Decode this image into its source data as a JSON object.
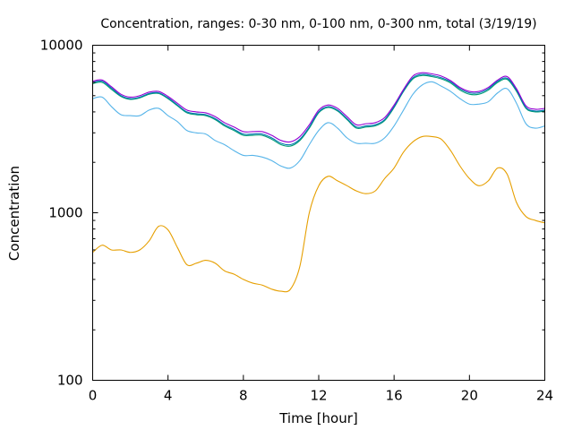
{
  "chart_data": {
    "type": "line",
    "title": "Concentration, ranges: 0-30 nm, 0-100 nm, 0-300 nm, total (3/19/19)",
    "xlabel": "Time [hour]",
    "ylabel": "Concentration",
    "xlim": [
      0,
      24
    ],
    "ylim": [
      100,
      10000
    ],
    "yscale": "log",
    "grid": false,
    "legend": "none",
    "xticks": [
      0,
      4,
      8,
      12,
      16,
      20,
      24
    ],
    "xtick_labels": [
      "0",
      "4",
      "8",
      "12",
      "16",
      "20",
      "24"
    ],
    "yticks": [
      100,
      1000,
      10000
    ],
    "ytick_labels": [
      "100",
      "1000",
      "10000"
    ],
    "x": [
      0,
      0.5,
      1,
      1.5,
      2,
      2.5,
      3,
      3.5,
      4,
      4.5,
      5,
      5.5,
      6,
      6.5,
      7,
      7.5,
      8,
      8.5,
      9,
      9.5,
      10,
      10.5,
      11,
      11.5,
      12,
      12.5,
      13,
      13.5,
      14,
      14.5,
      15,
      15.5,
      16,
      16.5,
      17,
      17.5,
      18,
      18.5,
      19,
      19.5,
      20,
      20.5,
      21,
      21.5,
      22,
      22.5,
      23,
      23.5,
      24
    ],
    "series": [
      {
        "color": "#e69f00",
        "values": [
          580,
          640,
          600,
          600,
          580,
          600,
          680,
          830,
          790,
          620,
          490,
          500,
          520,
          500,
          450,
          430,
          400,
          380,
          370,
          350,
          340,
          350,
          480,
          1000,
          1450,
          1650,
          1550,
          1450,
          1350,
          1300,
          1350,
          1600,
          1850,
          2300,
          2650,
          2850,
          2850,
          2750,
          2350,
          1900,
          1600,
          1450,
          1550,
          1850,
          1700,
          1150,
          950,
          900,
          870
        ]
      },
      {
        "color": "#56b4e9",
        "values": [
          4800,
          4900,
          4300,
          3850,
          3800,
          3800,
          4100,
          4200,
          3800,
          3500,
          3100,
          3000,
          2950,
          2700,
          2550,
          2350,
          2200,
          2200,
          2150,
          2050,
          1900,
          1850,
          2050,
          2550,
          3100,
          3450,
          3200,
          2800,
          2600,
          2600,
          2600,
          2800,
          3300,
          4100,
          5100,
          5800,
          6050,
          5700,
          5300,
          4800,
          4450,
          4450,
          4600,
          5200,
          5500,
          4500,
          3400,
          3200,
          3300
        ]
      },
      {
        "color": "#009e73",
        "values": [
          5900,
          6000,
          5450,
          4950,
          4750,
          4850,
          5100,
          5150,
          4800,
          4350,
          3950,
          3850,
          3800,
          3600,
          3300,
          3100,
          2900,
          2900,
          2900,
          2750,
          2550,
          2500,
          2700,
          3200,
          3950,
          4250,
          4050,
          3600,
          3200,
          3250,
          3300,
          3550,
          4250,
          5300,
          6300,
          6600,
          6500,
          6300,
          5950,
          5400,
          5100,
          5100,
          5400,
          6000,
          6250,
          5300,
          4200,
          4000,
          4050
        ]
      },
      {
        "color": "#0072b2",
        "values": [
          6000,
          6100,
          5550,
          5000,
          4800,
          4900,
          5150,
          5200,
          4850,
          4400,
          4000,
          3900,
          3850,
          3650,
          3350,
          3150,
          2950,
          2950,
          2950,
          2800,
          2600,
          2550,
          2750,
          3250,
          4000,
          4300,
          4100,
          3650,
          3250,
          3300,
          3350,
          3600,
          4300,
          5350,
          6400,
          6700,
          6600,
          6400,
          6050,
          5500,
          5200,
          5200,
          5500,
          6100,
          6350,
          5400,
          4250,
          4050,
          4100
        ]
      },
      {
        "color": "#9400d3",
        "values": [
          6100,
          6200,
          5650,
          5100,
          4900,
          5000,
          5250,
          5300,
          4950,
          4500,
          4100,
          4000,
          3950,
          3750,
          3450,
          3250,
          3050,
          3050,
          3050,
          2900,
          2700,
          2650,
          2850,
          3350,
          4100,
          4400,
          4200,
          3750,
          3350,
          3400,
          3450,
          3700,
          4400,
          5450,
          6550,
          6850,
          6750,
          6550,
          6150,
          5600,
          5300,
          5300,
          5600,
          6200,
          6500,
          5500,
          4350,
          4150,
          4200
        ]
      }
    ]
  }
}
